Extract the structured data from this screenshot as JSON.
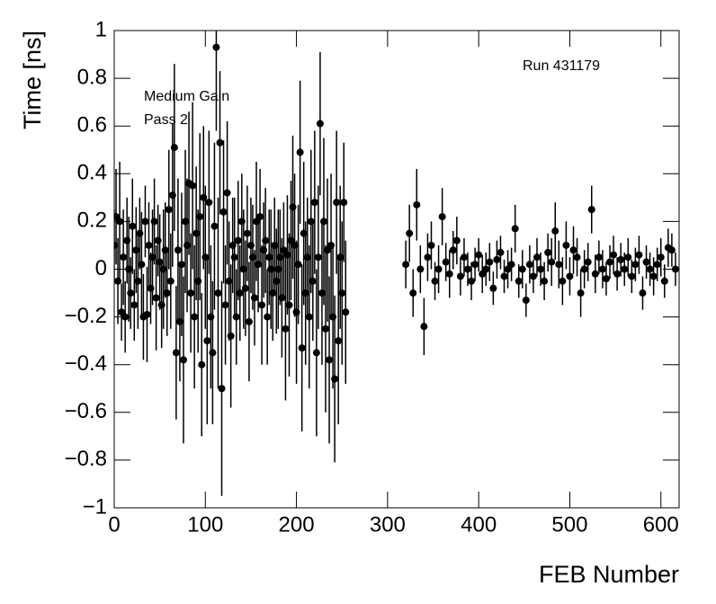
{
  "chart_data": {
    "type": "scatter",
    "x_label": "FEB Number",
    "y_label": "Time [ns]",
    "annotations": [
      "Run 431179",
      "Medium Gain",
      "Pass 2"
    ],
    "color": "#000000",
    "xlim": [
      0,
      620
    ],
    "ylim": [
      -1,
      1
    ],
    "xticks": [
      0,
      100,
      200,
      300,
      400,
      500,
      600
    ],
    "yticks": [
      {
        "value": -1,
        "label": "−1"
      },
      {
        "value": -0.8,
        "label": "−0.8"
      },
      {
        "value": -0.6,
        "label": "−0.6"
      },
      {
        "value": -0.4,
        "label": "−0.4"
      },
      {
        "value": -0.2,
        "label": "−0.2"
      },
      0,
      0.2,
      0.4,
      0.6,
      0.8,
      1
    ],
    "x": [
      0,
      2,
      4,
      6,
      8,
      10,
      12,
      14,
      16,
      18,
      20,
      22,
      24,
      26,
      28,
      30,
      32,
      34,
      36,
      38,
      40,
      42,
      44,
      46,
      48,
      50,
      52,
      54,
      56,
      58,
      60,
      62,
      64,
      66,
      68,
      70,
      72,
      74,
      76,
      78,
      80,
      82,
      84,
      86,
      88,
      90,
      92,
      94,
      96,
      98,
      100,
      102,
      104,
      106,
      108,
      110,
      112,
      114,
      116,
      118,
      120,
      122,
      124,
      126,
      128,
      130,
      132,
      134,
      136,
      138,
      140,
      142,
      144,
      146,
      148,
      150,
      152,
      154,
      156,
      158,
      160,
      162,
      164,
      166,
      168,
      170,
      172,
      174,
      176,
      178,
      180,
      182,
      184,
      186,
      188,
      190,
      192,
      194,
      196,
      198,
      200,
      202,
      204,
      206,
      208,
      210,
      212,
      214,
      216,
      218,
      220,
      222,
      224,
      226,
      228,
      230,
      232,
      234,
      236,
      238,
      240,
      242,
      244,
      246,
      248,
      250,
      252,
      254,
      320,
      324,
      328,
      332,
      336,
      340,
      344,
      348,
      352,
      356,
      360,
      364,
      368,
      372,
      376,
      380,
      384,
      388,
      392,
      396,
      400,
      404,
      408,
      412,
      416,
      420,
      424,
      428,
      432,
      436,
      440,
      444,
      448,
      452,
      456,
      460,
      464,
      468,
      472,
      476,
      480,
      484,
      488,
      492,
      496,
      500,
      504,
      508,
      512,
      516,
      520,
      524,
      528,
      532,
      536,
      540,
      544,
      548,
      552,
      556,
      560,
      564,
      568,
      572,
      576,
      580,
      584,
      588,
      592,
      596,
      600,
      604,
      608,
      612,
      616
    ],
    "values": [
      0.1,
      0.22,
      -0.05,
      0.2,
      -0.18,
      0.05,
      -0.2,
      0.12,
      0.0,
      -0.1,
      0.18,
      -0.15,
      0.08,
      -0.05,
      0.15,
      0.02,
      -0.2,
      0.2,
      -0.19,
      0.1,
      -0.08,
      0.05,
      0.2,
      -0.12,
      0.12,
      0.03,
      -0.15,
      0.0,
      0.08,
      -0.1,
      0.25,
      -0.05,
      0.31,
      0.51,
      -0.35,
      0.08,
      -0.22,
      0.02,
      -0.38,
      0.2,
      0.1,
      0.36,
      -0.1,
      0.35,
      -0.2,
      0.15,
      -0.05,
      0.22,
      -0.4,
      0.3,
      0.05,
      -0.3,
      0.28,
      -0.2,
      -0.35,
      0.18,
      0.93,
      -0.1,
      0.53,
      -0.5,
      0.24,
      -0.15,
      0.32,
      -0.05,
      -0.28,
      0.1,
      0.05,
      -0.2,
      0.12,
      -0.1,
      0.2,
      0.0,
      -0.08,
      0.15,
      -0.22,
      0.1,
      0.05,
      -0.12,
      0.2,
      0.02,
      0.22,
      -0.15,
      0.08,
      0.12,
      -0.2,
      0.05,
      0.0,
      -0.1,
      0.1,
      -0.05,
      0.0,
      0.05,
      -0.12,
      0.08,
      -0.25,
      0.06,
      -0.15,
      0.12,
      0.26,
      0.1,
      -0.18,
      0.02,
      0.49,
      -0.33,
      0.15,
      -0.1,
      0.05,
      -0.2,
      0.2,
      -0.05,
      0.28,
      -0.35,
      0.05,
      0.61,
      -0.1,
      0.2,
      -0.25,
      0.08,
      -0.38,
      0.1,
      -0.2,
      -0.46,
      0.28,
      -0.3,
      0.05,
      -0.1,
      0.28,
      -0.18,
      0.02,
      0.15,
      -0.1,
      0.27,
      0.0,
      -0.24,
      0.05,
      0.1,
      -0.05,
      0.0,
      0.22,
      0.03,
      -0.02,
      0.08,
      0.12,
      -0.03,
      0.05,
      0.0,
      -0.05,
      0.02,
      0.06,
      -0.02,
      0.0,
      0.03,
      -0.08,
      0.04,
      0.07,
      -0.03,
      0.0,
      0.02,
      0.17,
      -0.05,
      0.0,
      -0.13,
      0.02,
      -0.03,
      0.05,
      0.0,
      -0.05,
      0.07,
      0.03,
      0.16,
      0.02,
      -0.05,
      0.1,
      -0.03,
      0.08,
      0.05,
      -0.1,
      0.0,
      0.03,
      0.25,
      -0.02,
      0.05,
      0.0,
      -0.04,
      0.03,
      0.06,
      -0.02,
      0.04,
      0.0,
      0.05,
      -0.03,
      0.02,
      0.06,
      -0.1,
      0.03,
      0.0,
      -0.03,
      0.02,
      0.05,
      -0.05,
      0.09,
      0.08,
      0.0
    ],
    "errors": [
      0.15,
      0.2,
      0.18,
      0.25,
      0.12,
      0.2,
      0.15,
      0.18,
      0.22,
      0.15,
      0.2,
      0.15,
      0.18,
      0.2,
      0.15,
      0.22,
      0.18,
      0.15,
      0.2,
      0.18,
      0.15,
      0.2,
      0.18,
      0.22,
      0.15,
      0.2,
      0.18,
      0.25,
      0.2,
      0.18,
      0.25,
      0.2,
      0.3,
      0.35,
      0.28,
      0.3,
      0.25,
      0.3,
      0.35,
      0.3,
      0.28,
      0.3,
      0.25,
      0.35,
      0.3,
      0.28,
      0.3,
      0.35,
      0.3,
      0.3,
      0.3,
      0.35,
      0.3,
      0.3,
      0.3,
      0.35,
      0.35,
      0.4,
      0.3,
      0.45,
      0.3,
      0.25,
      0.3,
      0.25,
      0.3,
      0.2,
      0.25,
      0.2,
      0.25,
      0.2,
      0.2,
      0.25,
      0.2,
      0.2,
      0.25,
      0.2,
      0.22,
      0.2,
      0.25,
      0.2,
      0.2,
      0.25,
      0.2,
      0.22,
      0.2,
      0.2,
      0.25,
      0.2,
      0.2,
      0.22,
      0.25,
      0.2,
      0.25,
      0.2,
      0.3,
      0.25,
      0.3,
      0.25,
      0.3,
      0.3,
      0.3,
      0.25,
      0.3,
      0.35,
      0.3,
      0.3,
      0.25,
      0.3,
      0.3,
      0.25,
      0.3,
      0.35,
      0.3,
      0.3,
      0.3,
      0.35,
      0.35,
      0.3,
      0.35,
      0.3,
      0.3,
      0.35,
      0.3,
      0.35,
      0.3,
      0.3,
      0.25,
      0.3,
      0.1,
      0.12,
      0.1,
      0.15,
      0.1,
      0.12,
      0.1,
      0.1,
      0.08,
      0.1,
      0.12,
      0.08,
      0.1,
      0.08,
      0.1,
      0.08,
      0.08,
      0.07,
      0.08,
      0.07,
      0.07,
      0.08,
      0.07,
      0.08,
      0.07,
      0.08,
      0.07,
      0.07,
      0.08,
      0.07,
      0.1,
      0.07,
      0.08,
      0.07,
      0.08,
      0.07,
      0.08,
      0.07,
      0.08,
      0.08,
      0.1,
      0.12,
      0.1,
      0.1,
      0.1,
      0.08,
      0.1,
      0.08,
      0.1,
      0.08,
      0.08,
      0.1,
      0.08,
      0.07,
      0.08,
      0.07,
      0.07,
      0.08,
      0.07,
      0.07,
      0.07,
      0.08,
      0.07,
      0.07,
      0.08,
      0.07,
      0.07,
      0.07,
      0.08,
      0.07,
      0.08,
      0.07,
      0.08,
      0.07,
      0.07
    ]
  }
}
